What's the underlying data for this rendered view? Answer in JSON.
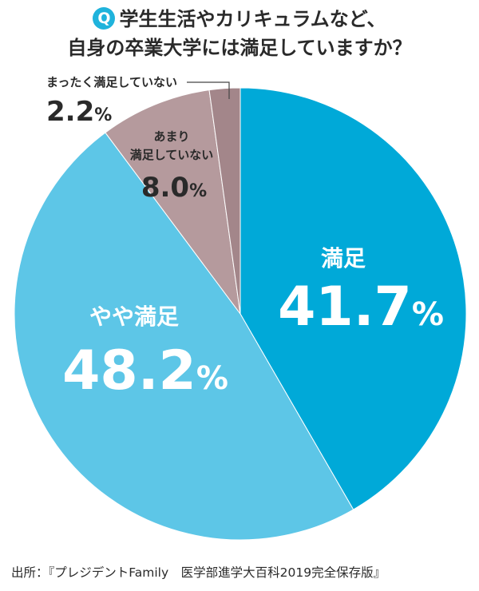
{
  "title": {
    "badge": "Q",
    "line1": "学生生活やカリキュラムなど、",
    "line2": "自身の卒業大学には満足していますか？"
  },
  "chart_data": {
    "type": "pie",
    "start_angle_deg": 0,
    "direction": "clockwise",
    "slices": [
      {
        "label": "満足",
        "value": 41.7,
        "value_text": "41.7",
        "unit": "%",
        "color": "#00a9d8"
      },
      {
        "label": "やや満足",
        "value": 48.2,
        "value_text": "48.2",
        "unit": "%",
        "color": "#5dc6e7"
      },
      {
        "label": "あまり満足していない",
        "label_lines": [
          "あまり",
          "満足していない"
        ],
        "value": 8.0,
        "value_text": "8.0",
        "unit": "%",
        "color": "#b59a9d"
      },
      {
        "label": "まったく満足していない",
        "value": 2.2,
        "value_text": "2.2",
        "unit": "%",
        "color": "#a3868a"
      }
    ]
  },
  "source": "出所：『プレジデントFamily　医学部進学大百科2019完全保存版』"
}
